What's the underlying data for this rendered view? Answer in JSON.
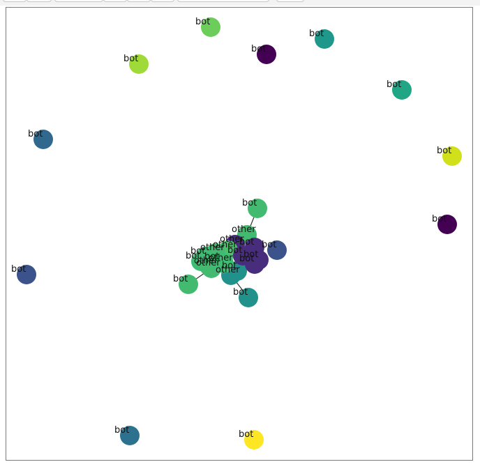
{
  "toolbar": {
    "buttons": [
      {
        "name": "toolbar-button-1"
      },
      {
        "name": "toolbar-button-2"
      },
      {
        "name": "toolbar-button-3"
      },
      {
        "name": "toolbar-button-4"
      },
      {
        "name": "toolbar-button-5"
      },
      {
        "name": "toolbar-button-6"
      },
      {
        "name": "toolbar-button-7"
      }
    ]
  },
  "graph": {
    "nodes": [
      {
        "id": "n1",
        "label": "bot",
        "color": "#6ccd5a"
      },
      {
        "id": "n2",
        "label": "bot",
        "color": "#440154"
      },
      {
        "id": "n3",
        "label": "bot",
        "color": "#1f988b"
      },
      {
        "id": "n4",
        "label": "bot",
        "color": "#a0da39"
      },
      {
        "id": "n5",
        "label": "bot",
        "color": "#21a685"
      },
      {
        "id": "n6",
        "label": "bot",
        "color": "#31688e"
      },
      {
        "id": "n7",
        "label": "bot",
        "color": "#d0e11c"
      },
      {
        "id": "n8",
        "label": "bot",
        "color": "#42bb70"
      },
      {
        "id": "n9",
        "label": "bot",
        "color": "#440154"
      },
      {
        "id": "n10",
        "label": "bot",
        "color": "#3b528b"
      },
      {
        "id": "n11",
        "label": "bot",
        "color": "#3b528b"
      },
      {
        "id": "n12",
        "label": "bot",
        "color": "#42bb70"
      },
      {
        "id": "n13",
        "label": "bot",
        "color": "#21918c"
      },
      {
        "id": "n14",
        "label": "bot",
        "color": "#2c728e"
      },
      {
        "id": "n15",
        "label": "bot",
        "color": "#fde725"
      },
      {
        "id": "n16",
        "label": "other",
        "color": "#42bb70"
      },
      {
        "id": "n17",
        "label": "other",
        "color": "#472d7b"
      },
      {
        "id": "n18",
        "label": "other",
        "color": "#4ac16d"
      },
      {
        "id": "n19",
        "label": "bot",
        "color": "#472d7b"
      },
      {
        "id": "n20",
        "label": "bot",
        "color": "#472d7b"
      },
      {
        "id": "n21",
        "label": "other",
        "color": "#42bb70"
      },
      {
        "id": "n22",
        "label": "bot",
        "color": "#3fbc73"
      },
      {
        "id": "n23",
        "label": "bot",
        "color": "#3fbc73"
      },
      {
        "id": "n24",
        "label": "other",
        "color": "#42bb70"
      },
      {
        "id": "n25",
        "label": "bot",
        "color": "#21918c"
      },
      {
        "id": "n26",
        "label": "other",
        "color": "#42bb70"
      },
      {
        "id": "n27",
        "label": "other",
        "color": "#21918c"
      },
      {
        "id": "n28",
        "label": "other",
        "color": "#3fbc73"
      },
      {
        "id": "n29",
        "label": "bot",
        "color": "#472d7b"
      },
      {
        "id": "n30",
        "label": "bot",
        "color": "#3fbc73"
      },
      {
        "id": "n31",
        "label": "bot",
        "color": "#472d7b"
      }
    ],
    "edges": [
      {
        "from": "n8",
        "to": "n16"
      },
      {
        "from": "n12",
        "to": "n26"
      },
      {
        "from": "n13",
        "to": "n27"
      }
    ]
  }
}
